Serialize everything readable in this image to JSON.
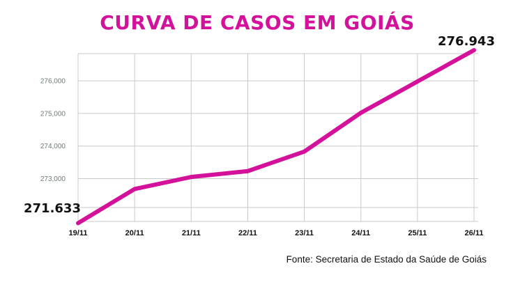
{
  "chart_data": {
    "type": "line",
    "title": "CURVA DE CASOS EM GOIÁS",
    "source": "Fonte: Secretaria de Estado da Saúde de Goiás",
    "categories": [
      "19/11",
      "20/11",
      "21/11",
      "22/11",
      "23/11",
      "24/11",
      "25/11",
      "26/11"
    ],
    "series": [
      {
        "values": [
          271633,
          272680,
          273050,
          273230,
          273830,
          275020,
          275980,
          276943
        ]
      }
    ],
    "y_ticks": [
      {
        "value": 273000,
        "label": "273,000"
      },
      {
        "value": 274000,
        "label": "274,000"
      },
      {
        "value": 275000,
        "label": "275,000"
      },
      {
        "value": 276000,
        "label": "276,000"
      }
    ],
    "ylim": [
      271600,
      276943
    ],
    "grid": true,
    "legend": "none",
    "callouts": {
      "first": "271.633",
      "last": "276.943"
    },
    "colors": {
      "line": "#d4119a",
      "title": "#d4119a",
      "grid": "#c9c9c9",
      "y_tick": "#6d7b74"
    }
  }
}
